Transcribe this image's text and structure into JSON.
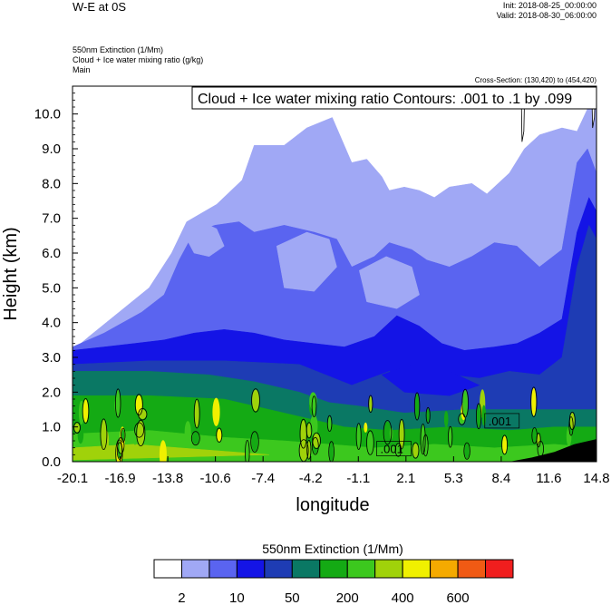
{
  "header": {
    "title": "W-E at 0S",
    "init": "Init: 2018-08-25_00:00:00",
    "valid": "Valid: 2018-08-30_06:00:00",
    "field_lines": [
      "550nm Extinction   (1/Mm)",
      "Cloud + Ice water mixing ratio   (g/kg)",
      "Main"
    ],
    "cross_section": "Cross-Section: (130,420) to (454,420)"
  },
  "chart_data": {
    "type": "heatmap",
    "contour_title": "Cloud + Ice water mixing ratio Contours: .001 to .1 by .099",
    "contour_labels": [
      ".001",
      ".001"
    ],
    "xlabel": "longitude",
    "ylabel": "Height (km)",
    "x_ticks": [
      "-20.1",
      "-16.9",
      "-13.8",
      "-10.6",
      "-7.4",
      "-4.2",
      "-1.1",
      "2.1",
      "5.3",
      "8.4",
      "11.6",
      "14.8"
    ],
    "y_ticks": [
      "0.0",
      "1.0",
      "2.0",
      "3.0",
      "4.0",
      "5.0",
      "6.0",
      "7.0",
      "8.0",
      "9.0",
      "10.0"
    ],
    "xlim": [
      -20.1,
      14.8
    ],
    "ylim": [
      0,
      10.8
    ],
    "colorbar": {
      "title": "550nm Extinction  (1/Mm)",
      "colors": [
        "#ffffff",
        "#a0a8f5",
        "#5a64f0",
        "#1414e6",
        "#1e3cb4",
        "#0a7864",
        "#14aa14",
        "#3cc81e",
        "#a0d20a",
        "#f0f000",
        "#f5aa00",
        "#f05a14",
        "#f01e1e"
      ],
      "labels": [
        "2",
        "10",
        "50",
        "200",
        "400",
        "600"
      ]
    },
    "regions": [
      {
        "level": 1,
        "desc": "high thin cloud",
        "pts": [
          [
            -20.1,
            3.2
          ],
          [
            -19,
            3.6
          ],
          [
            -17,
            4.3
          ],
          [
            -15,
            5.0
          ],
          [
            -13.5,
            6.0
          ],
          [
            -12.5,
            6.9
          ],
          [
            -10.5,
            7.4
          ],
          [
            -8.8,
            8.1
          ],
          [
            -8,
            9.1
          ],
          [
            -6,
            9.1
          ],
          [
            -4.5,
            9.6
          ],
          [
            -2.8,
            9.9
          ],
          [
            -1.5,
            8.6
          ],
          [
            -0.5,
            8.7
          ],
          [
            0.5,
            8.2
          ],
          [
            1,
            7.8
          ],
          [
            2,
            7.9
          ],
          [
            3,
            7.8
          ],
          [
            4,
            7.6
          ],
          [
            5,
            7.9
          ],
          [
            6.5,
            8.0
          ],
          [
            7.5,
            7.7
          ],
          [
            9,
            8.3
          ],
          [
            10,
            9.0
          ],
          [
            11,
            9.4
          ],
          [
            12.5,
            9.6
          ],
          [
            13.5,
            9.5
          ],
          [
            14.8,
            10.7
          ],
          [
            14.8,
            0.8
          ],
          [
            -20.1,
            0.8
          ]
        ]
      },
      {
        "level": 2,
        "desc": "mid cloud",
        "pts": [
          [
            -20.1,
            3.3
          ],
          [
            -18,
            3.7
          ],
          [
            -15.5,
            4.3
          ],
          [
            -14,
            4.8
          ],
          [
            -13,
            5.8
          ],
          [
            -12,
            6.6
          ],
          [
            -10.6,
            6.8
          ],
          [
            -9,
            6.9
          ],
          [
            -8,
            6.6
          ],
          [
            -6,
            6.8
          ],
          [
            -4,
            6.6
          ],
          [
            -2.5,
            6.4
          ],
          [
            -1.5,
            5.6
          ],
          [
            0,
            5.9
          ],
          [
            1,
            6.3
          ],
          [
            2.5,
            6.1
          ],
          [
            3.5,
            5.8
          ],
          [
            5,
            5.6
          ],
          [
            6.5,
            5.9
          ],
          [
            8,
            6.3
          ],
          [
            9.5,
            6.2
          ],
          [
            11,
            5.6
          ],
          [
            12.5,
            6.1
          ],
          [
            13.5,
            8.6
          ],
          [
            14.2,
            9.0
          ],
          [
            14.8,
            8.3
          ],
          [
            14.8,
            0.8
          ],
          [
            -20.1,
            0.8
          ]
        ]
      },
      {
        "level": 3,
        "desc": "dense mid cloud",
        "pts": [
          [
            -20.1,
            3.2
          ],
          [
            -18,
            3.3
          ],
          [
            -16,
            3.4
          ],
          [
            -14,
            3.5
          ],
          [
            -12,
            3.7
          ],
          [
            -10,
            3.8
          ],
          [
            -8,
            3.7
          ],
          [
            -6,
            3.5
          ],
          [
            -4,
            3.4
          ],
          [
            -2,
            3.3
          ],
          [
            0,
            3.6
          ],
          [
            1.5,
            4.2
          ],
          [
            3,
            3.9
          ],
          [
            4.5,
            3.4
          ],
          [
            6,
            3.2
          ],
          [
            8,
            3.3
          ],
          [
            9.5,
            3.4
          ],
          [
            11,
            3.7
          ],
          [
            12.5,
            4.1
          ],
          [
            13.5,
            6.6
          ],
          [
            14.3,
            7.6
          ],
          [
            14.8,
            7.2
          ],
          [
            14.8,
            0.8
          ],
          [
            -20.1,
            0.8
          ]
        ]
      },
      {
        "level": 4,
        "desc": "core",
        "pts": [
          [
            -20.1,
            2.8
          ],
          [
            -15,
            2.9
          ],
          [
            -10,
            2.9
          ],
          [
            -5,
            2.8
          ],
          [
            -1.5,
            2.2
          ],
          [
            1,
            2.6
          ],
          [
            3,
            2.2
          ],
          [
            5,
            2.5
          ],
          [
            7,
            2.4
          ],
          [
            9,
            2.6
          ],
          [
            11,
            2.5
          ],
          [
            12.5,
            3.0
          ],
          [
            13.5,
            5.6
          ],
          [
            14.3,
            6.8
          ],
          [
            14.8,
            6.4
          ],
          [
            14.8,
            0.8
          ],
          [
            -20.1,
            0.8
          ]
        ]
      },
      {
        "level": 5,
        "desc": "boundary layer",
        "pts": [
          [
            -20.1,
            2.6
          ],
          [
            -15,
            2.6
          ],
          [
            -11,
            2.5
          ],
          [
            -8,
            2.3
          ],
          [
            -5,
            2.0
          ],
          [
            -3,
            1.7
          ],
          [
            -1,
            1.6
          ],
          [
            2,
            1.4
          ],
          [
            6,
            1.5
          ],
          [
            10,
            1.5
          ],
          [
            14.8,
            1.5
          ],
          [
            14.8,
            0
          ],
          [
            -20.1,
            0
          ]
        ]
      },
      {
        "level": 6,
        "desc": "surface",
        "pts": [
          [
            -20.1,
            1.9
          ],
          [
            -15,
            1.9
          ],
          [
            -10,
            1.8
          ],
          [
            -7,
            1.5
          ],
          [
            -4,
            1.2
          ],
          [
            -2,
            1.0
          ],
          [
            1,
            0.9
          ],
          [
            5,
            1.0
          ],
          [
            9,
            0.9
          ],
          [
            12,
            1.0
          ],
          [
            14.8,
            1.0
          ],
          [
            14.8,
            0
          ],
          [
            -20.1,
            0
          ]
        ]
      },
      {
        "level": 7,
        "desc": "surface green",
        "pts": [
          [
            -20.1,
            0.8
          ],
          [
            -15,
            0.9
          ],
          [
            -10,
            0.7
          ],
          [
            -6,
            0.6
          ],
          [
            -3,
            0.5
          ],
          [
            0,
            0.4
          ],
          [
            4,
            0.5
          ],
          [
            8,
            0.4
          ],
          [
            12,
            0.5
          ],
          [
            14.8,
            0.4
          ],
          [
            14.8,
            0
          ],
          [
            -20.1,
            0
          ]
        ]
      },
      {
        "level": 8,
        "desc": "surface bright",
        "pts": [
          [
            -20.1,
            0.4
          ],
          [
            -16,
            0.5
          ],
          [
            -13,
            0.4
          ],
          [
            -10,
            0.3
          ],
          [
            -7,
            0.2
          ],
          [
            -20.1,
            0.05
          ]
        ]
      },
      {
        "level": 1,
        "desc": "clear hole upper",
        "pts": [
          [
            -12.5,
            6.4
          ],
          [
            -11.5,
            6.9
          ],
          [
            -10.5,
            6.7
          ],
          [
            -10,
            6.2
          ],
          [
            -11,
            5.9
          ],
          [
            -12,
            6.0
          ]
        ]
      },
      {
        "level": 1,
        "desc": "clear hole mid",
        "pts": [
          [
            -6.5,
            6.2
          ],
          [
            -4.5,
            6.6
          ],
          [
            -3,
            6.4
          ],
          [
            -2.5,
            5.6
          ],
          [
            -4,
            4.9
          ],
          [
            -6,
            5.0
          ]
        ]
      },
      {
        "level": 1,
        "desc": "clear hole center",
        "pts": [
          [
            -1,
            5.5
          ],
          [
            0.8,
            5.9
          ],
          [
            2.5,
            5.6
          ],
          [
            3,
            4.8
          ],
          [
            1.5,
            4.4
          ],
          [
            -0.5,
            4.6
          ]
        ]
      },
      {
        "level": 3,
        "desc": "embedded cell",
        "pts": [
          [
            0.5,
            2.5
          ],
          [
            2.5,
            2.8
          ],
          [
            5,
            2.6
          ],
          [
            7,
            2.2
          ],
          [
            5,
            1.9
          ],
          [
            2,
            2.0
          ]
        ]
      }
    ]
  }
}
